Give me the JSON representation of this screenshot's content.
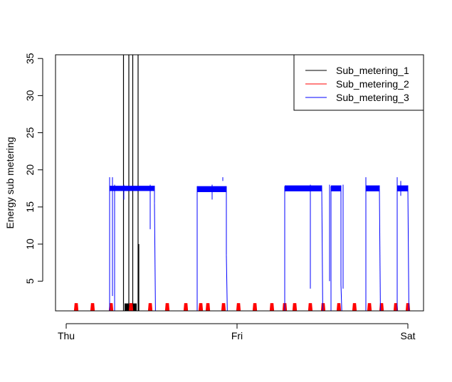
{
  "chart_data": {
    "type": "line",
    "title": "",
    "xlabel": "",
    "ylabel": "Energy sub metering",
    "x_ticks": [
      {
        "label": "Thu",
        "value": 0
      },
      {
        "label": "Fri",
        "value": 24
      },
      {
        "label": "Sat",
        "value": 48
      }
    ],
    "xlim": [
      -1.5,
      50.2
    ],
    "y_ticks": [
      5,
      10,
      15,
      20,
      25,
      30,
      35
    ],
    "ylim": [
      1,
      35.5
    ],
    "legend": {
      "position": "top-right",
      "entries": [
        "Sub_metering_1",
        "Sub_metering_2",
        "Sub_metering_3"
      ]
    },
    "grid": false,
    "series": [
      {
        "name": "Sub_metering_1",
        "color": "#000000",
        "points": [
          [
            0,
            0
          ],
          [
            8.3,
            0
          ],
          [
            8.3,
            1
          ],
          [
            8.4,
            0
          ],
          [
            8.6,
            0
          ],
          [
            8.6,
            1
          ],
          [
            8.7,
            0
          ],
          [
            8.9,
            0
          ],
          [
            8.9,
            1
          ],
          [
            9.0,
            0
          ],
          [
            9.4,
            0
          ],
          [
            9.4,
            1
          ],
          [
            9.5,
            0
          ],
          [
            9.75,
            0
          ],
          [
            9.75,
            1
          ],
          [
            9.8,
            0
          ],
          [
            10.0,
            0
          ],
          [
            10.0,
            1
          ],
          [
            10.05,
            0
          ],
          [
            10.25,
            0
          ],
          [
            10.3,
            1
          ],
          [
            10.35,
            0
          ],
          [
            15,
            0
          ],
          [
            15,
            1
          ],
          [
            15.1,
            0
          ],
          [
            20,
            0
          ],
          [
            20,
            1
          ],
          [
            20.1,
            0
          ],
          [
            26,
            0
          ],
          [
            26,
            1
          ],
          [
            26.1,
            0
          ],
          [
            31,
            0
          ],
          [
            31,
            1
          ],
          [
            31.1,
            0
          ],
          [
            36.5,
            0
          ],
          [
            36.5,
            1
          ],
          [
            36.6,
            0
          ],
          [
            48,
            0
          ]
        ],
        "spikes": [
          {
            "x": 8.05,
            "y": 38
          },
          {
            "x": 8.8,
            "y": 38
          },
          {
            "x": 9.35,
            "y": 38
          },
          {
            "x": 10.1,
            "y": 38
          },
          {
            "x": 10.2,
            "y": 10
          }
        ],
        "blocks": [
          [
            8.2,
            8.75,
            2
          ],
          [
            9.25,
            9.9,
            2
          ]
        ]
      },
      {
        "name": "Sub_metering_2",
        "color": "#ff0000",
        "pulses": [
          1.4,
          3.7,
          6.3,
          9.1,
          11.8,
          14.2,
          16.8,
          18.9,
          19.9,
          22.1,
          24.2,
          26.5,
          28.9,
          30.7,
          32.1,
          34.3,
          36.1,
          38.3,
          40.5,
          42.6,
          44.3,
          46.3,
          48.0
        ],
        "pulse_height": 2,
        "pulse_width": 0.35
      },
      {
        "name": "Sub_metering_3",
        "color": "#0000ff",
        "segments": [
          {
            "start": 6.1,
            "end": 12.4,
            "level": 17.5,
            "band": 0.7,
            "start_peak": 19,
            "end_tail": 15.5
          },
          {
            "start": 18.4,
            "end": 22.5,
            "level": 17.4,
            "band": 0.8,
            "start_peak": 17.8,
            "end_tail": 8.5
          },
          {
            "start": 30.7,
            "end": 35.9,
            "level": 17.5,
            "band": 0.8,
            "start_peak": 17.8,
            "end_tail": 17.8
          },
          {
            "start": 37.2,
            "end": 38.6,
            "level": 17.5,
            "band": 0.8,
            "start_peak": 17.8,
            "end_tail": 4.5
          },
          {
            "start": 42.1,
            "end": 44.0,
            "level": 17.5,
            "band": 0.8,
            "start_peak": 19,
            "end_tail": 17.5
          },
          {
            "start": 46.5,
            "end": 48.0,
            "level": 17.5,
            "band": 0.8,
            "start_peak": 19,
            "end_tail": 17.5
          }
        ],
        "extra_lines": [
          {
            "x": 6.5,
            "y1": 3,
            "y2": 19
          },
          {
            "x": 6.8,
            "y1": 1,
            "y2": 18
          },
          {
            "x": 8.1,
            "y1": 16,
            "y2": 18
          },
          {
            "x": 11.8,
            "y1": 12,
            "y2": 18
          },
          {
            "x": 20.5,
            "y1": 16,
            "y2": 18
          },
          {
            "x": 22.0,
            "y1": 18.5,
            "y2": 19
          },
          {
            "x": 34.3,
            "y1": 4,
            "y2": 18
          },
          {
            "x": 37.0,
            "y1": 5,
            "y2": 18
          },
          {
            "x": 38.9,
            "y1": 4,
            "y2": 18
          },
          {
            "x": 47.0,
            "y1": 16.5,
            "y2": 18.5
          }
        ]
      }
    ]
  }
}
